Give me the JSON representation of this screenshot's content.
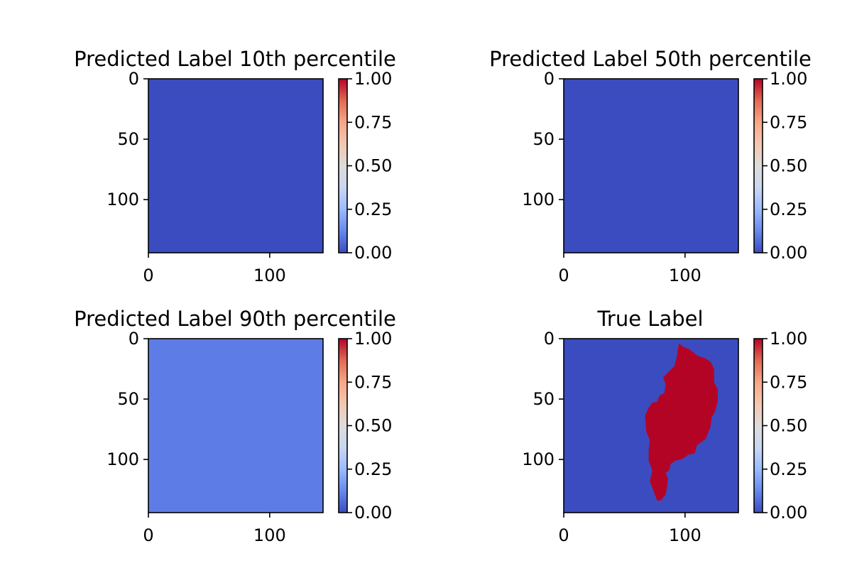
{
  "colormap": {
    "name": "coolwarm",
    "stops": [
      "#3b4cc0",
      "#6788ee",
      "#9abbff",
      "#c9d7f0",
      "#dddcdc",
      "#f4c6af",
      "#f7a789",
      "#e26952",
      "#b40426"
    ]
  },
  "chart_data": [
    {
      "type": "heatmap",
      "title": "Predicted Label 10th percentile",
      "xticks": [
        "0",
        "100"
      ],
      "yticks": [
        "0",
        "50",
        "100"
      ],
      "xlim": [
        0,
        144
      ],
      "ylim": [
        144,
        0
      ],
      "value": 0.0,
      "vmin": 0,
      "vmax": 1,
      "colorbar_ticks": [
        "0.00",
        "0.25",
        "0.50",
        "0.75",
        "1.00"
      ]
    },
    {
      "type": "heatmap",
      "title": "Predicted Label 50th percentile",
      "xticks": [
        "0",
        "100"
      ],
      "yticks": [
        "0",
        "50",
        "100"
      ],
      "xlim": [
        0,
        144
      ],
      "ylim": [
        144,
        0
      ],
      "value": 0.0,
      "vmin": 0,
      "vmax": 1,
      "colorbar_ticks": [
        "0.00",
        "0.25",
        "0.50",
        "0.75",
        "1.00"
      ]
    },
    {
      "type": "heatmap",
      "title": "Predicted Label 90th percentile",
      "xticks": [
        "0",
        "100"
      ],
      "yticks": [
        "0",
        "50",
        "100"
      ],
      "xlim": [
        0,
        144
      ],
      "ylim": [
        144,
        0
      ],
      "value": 0.1,
      "vmin": 0,
      "vmax": 1,
      "colorbar_ticks": [
        "0.00",
        "0.25",
        "0.50",
        "0.75",
        "1.00"
      ]
    },
    {
      "type": "heatmap",
      "title": "True Label",
      "xticks": [
        "0",
        "100"
      ],
      "yticks": [
        "0",
        "50",
        "100"
      ],
      "xlim": [
        0,
        144
      ],
      "ylim": [
        144,
        0
      ],
      "value": 0.0,
      "region_value": 1.0,
      "region_outline": [
        [
          95,
          4
        ],
        [
          99,
          7
        ],
        [
          104,
          9
        ],
        [
          110,
          14
        ],
        [
          116,
          16
        ],
        [
          121,
          19
        ],
        [
          124,
          25
        ],
        [
          124,
          36
        ],
        [
          127,
          42
        ],
        [
          127,
          51
        ],
        [
          125,
          60
        ],
        [
          122,
          65
        ],
        [
          121,
          73
        ],
        [
          117,
          83
        ],
        [
          110,
          88
        ],
        [
          108,
          95
        ],
        [
          103,
          96
        ],
        [
          97,
          100
        ],
        [
          92,
          101
        ],
        [
          88,
          104
        ],
        [
          87,
          109
        ],
        [
          84,
          111
        ],
        [
          86,
          116
        ],
        [
          85,
          124
        ],
        [
          84,
          129
        ],
        [
          80,
          134
        ],
        [
          77,
          134
        ],
        [
          74,
          126
        ],
        [
          71,
          118
        ],
        [
          73,
          109
        ],
        [
          70,
          101
        ],
        [
          70,
          92
        ],
        [
          71,
          84
        ],
        [
          68,
          77
        ],
        [
          67,
          64
        ],
        [
          70,
          57
        ],
        [
          73,
          53
        ],
        [
          77,
          52
        ],
        [
          79,
          47
        ],
        [
          83,
          45
        ],
        [
          84,
          38
        ],
        [
          82,
          32
        ],
        [
          87,
          27
        ],
        [
          91,
          23
        ],
        [
          93,
          16
        ],
        [
          94,
          9
        ]
      ],
      "vmin": 0,
      "vmax": 1,
      "colorbar_ticks": [
        "0.00",
        "0.25",
        "0.50",
        "0.75",
        "1.00"
      ]
    }
  ]
}
